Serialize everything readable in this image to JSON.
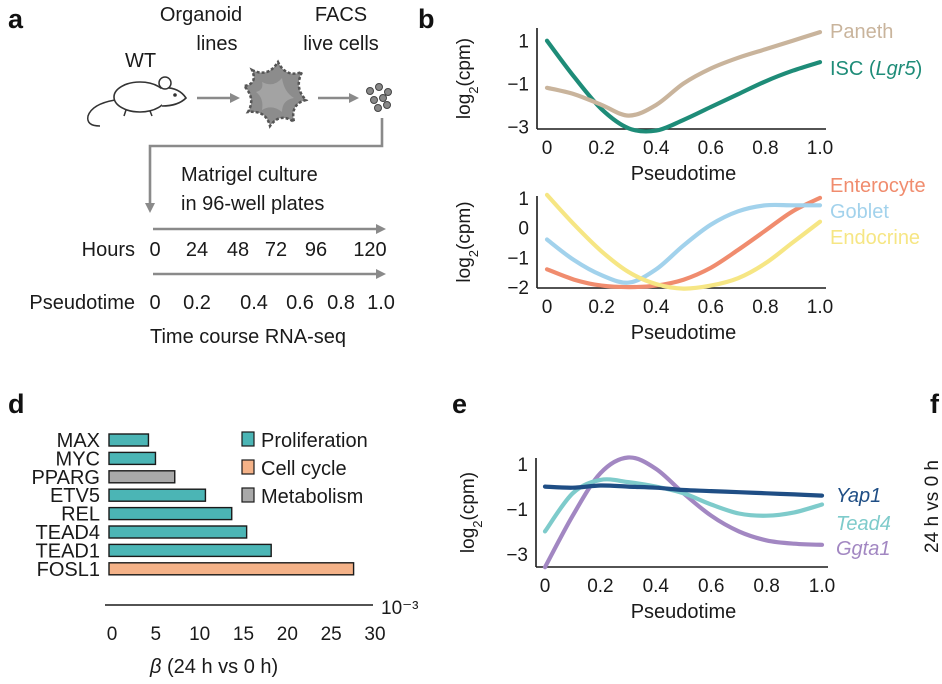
{
  "panels": {
    "a": "a",
    "b": "b",
    "d": "d",
    "e": "e",
    "f": "f"
  },
  "panel_a": {
    "wt_label": "WT",
    "organoid_line1": "Organoid",
    "organoid_line2": "lines",
    "facs_line1": "FACS",
    "facs_line2": "live cells",
    "culture_line1": "Matrigel culture",
    "culture_line2": "in 96-well plates",
    "hours_label": "Hours",
    "hours_ticks": [
      "0",
      "24",
      "48",
      "72",
      "96",
      "120"
    ],
    "pseudotime_label": "Pseudotime",
    "pseudotime_ticks": [
      "0",
      "0.2",
      "0.4",
      "0.6",
      "0.8",
      "1.0"
    ],
    "footer": "Time course RNA-seq",
    "colors": {
      "arrow": "#8a8a8a",
      "organoid": "#8c8c8c"
    },
    "icons": [
      "mouse-icon",
      "organoid-icon",
      "cells-icon"
    ]
  },
  "chart_data": [
    {
      "panel": "b-top",
      "type": "line",
      "xlabel": "Pseudotime",
      "ylabel": "log2(cpm)",
      "xlim": [
        0,
        1
      ],
      "ylim": [
        -3.5,
        1.5
      ],
      "x_ticks": [
        "0",
        "0.2",
        "0.4",
        "0.6",
        "0.8",
        "1.0"
      ],
      "y_ticks": [
        "1",
        "−1",
        "−3"
      ],
      "series": [
        {
          "name": "Paneth",
          "color": "#c9b49c",
          "x": [
            0,
            0.1,
            0.2,
            0.3,
            0.4,
            0.5,
            0.6,
            0.7,
            0.8,
            0.9,
            1.0
          ],
          "y": [
            -1.2,
            -1.5,
            -2.0,
            -2.5,
            -2.0,
            -1.0,
            -0.3,
            0.2,
            0.6,
            1.0,
            1.4
          ]
        },
        {
          "name": "ISC",
          "name_italic_part": "Lgr5",
          "color": "#1e8c78",
          "x": [
            0,
            0.1,
            0.2,
            0.3,
            0.4,
            0.5,
            0.6,
            0.7,
            0.8,
            0.9,
            1.0
          ],
          "y": [
            1.0,
            -0.7,
            -2.2,
            -3.1,
            -3.2,
            -2.7,
            -2.1,
            -1.5,
            -0.9,
            -0.4,
            0.0
          ]
        }
      ]
    },
    {
      "panel": "b-bottom",
      "type": "line",
      "xlabel": "Pseudotime",
      "ylabel": "log2(cpm)",
      "xlim": [
        0,
        1
      ],
      "ylim": [
        -2.3,
        1.3
      ],
      "x_ticks": [
        "0",
        "0.2",
        "0.4",
        "0.6",
        "0.8",
        "1.0"
      ],
      "y_ticks": [
        "1",
        "0",
        "−1",
        "−2"
      ],
      "series": [
        {
          "name": "Enterocyte",
          "color": "#f08c6e",
          "x": [
            0,
            0.1,
            0.2,
            0.3,
            0.4,
            0.5,
            0.6,
            0.7,
            0.8,
            0.9,
            1.0
          ],
          "y": [
            -1.4,
            -1.75,
            -1.95,
            -2.0,
            -1.95,
            -1.75,
            -1.35,
            -0.75,
            -0.1,
            0.55,
            1.0
          ]
        },
        {
          "name": "Goblet",
          "color": "#a2d2ec",
          "x": [
            0,
            0.1,
            0.2,
            0.3,
            0.4,
            0.5,
            0.6,
            0.7,
            0.8,
            0.9,
            1.0
          ],
          "y": [
            -0.4,
            -1.1,
            -1.6,
            -1.85,
            -1.4,
            -0.6,
            0.1,
            0.55,
            0.75,
            0.75,
            0.75
          ]
        },
        {
          "name": "Endocrine",
          "color": "#f6e684",
          "x": [
            0,
            0.1,
            0.2,
            0.3,
            0.4,
            0.5,
            0.6,
            0.7,
            0.8,
            0.9,
            1.0
          ],
          "y": [
            1.1,
            0.1,
            -0.8,
            -1.5,
            -1.9,
            -2.05,
            -1.95,
            -1.7,
            -1.2,
            -0.5,
            0.2
          ]
        }
      ]
    },
    {
      "panel": "d",
      "type": "bar",
      "orientation": "horizontal",
      "xlabel": "β (24 h vs 0 h)",
      "xlabel_beta": "β",
      "xlabel_rest": "(24 h vs 0 h)",
      "scale_note": "10⁻³",
      "xlim": [
        0,
        30
      ],
      "x_ticks": [
        "0",
        "5",
        "10",
        "15",
        "20",
        "25",
        "30"
      ],
      "categories": [
        "MAX",
        "MYC",
        "PPARG",
        "ETV5",
        "REL",
        "TEAD4",
        "TEAD1",
        "FOSL1"
      ],
      "values": [
        4.5,
        5.3,
        7.5,
        11,
        14,
        15.7,
        18.5,
        27.9
      ],
      "groups": [
        "Proliferation",
        "Proliferation",
        "Metabolism",
        "Proliferation",
        "Proliferation",
        "Proliferation",
        "Proliferation",
        "Cell cycle"
      ],
      "legend": [
        {
          "name": "Proliferation",
          "color": "#4bb5b5"
        },
        {
          "name": "Cell cycle",
          "color": "#f4b288"
        },
        {
          "name": "Metabolism",
          "color": "#a9a9a9"
        }
      ]
    },
    {
      "panel": "e",
      "type": "line",
      "xlabel": "Pseudotime",
      "ylabel": "log2(cpm)",
      "xlim": [
        0,
        1
      ],
      "ylim": [
        -3.5,
        1.5
      ],
      "x_ticks": [
        "0",
        "0.2",
        "0.4",
        "0.6",
        "0.8",
        "1.0"
      ],
      "y_ticks": [
        "1",
        "−1",
        "−3"
      ],
      "series": [
        {
          "name": "Yap1",
          "color": "#1f4e85",
          "x": [
            0,
            0.1,
            0.2,
            0.3,
            0.4,
            0.5,
            0.6,
            0.7,
            0.8,
            0.9,
            1.0
          ],
          "y": [
            0.0,
            -0.05,
            0.05,
            0.0,
            -0.05,
            -0.15,
            -0.2,
            -0.25,
            -0.3,
            -0.35,
            -0.4
          ]
        },
        {
          "name": "Tead4",
          "color": "#7ecbcb",
          "x": [
            0,
            0.1,
            0.2,
            0.3,
            0.4,
            0.5,
            0.6,
            0.7,
            0.8,
            0.9,
            1.0
          ],
          "y": [
            -2.0,
            -0.3,
            0.3,
            0.2,
            0.0,
            -0.3,
            -0.8,
            -1.2,
            -1.3,
            -1.15,
            -0.8
          ]
        },
        {
          "name": "Ggta1",
          "color": "#a287c2",
          "x": [
            0,
            0.1,
            0.2,
            0.3,
            0.4,
            0.5,
            0.6,
            0.7,
            0.8,
            0.9,
            1.0
          ],
          "y": [
            -3.6,
            -1.3,
            0.6,
            1.3,
            0.8,
            -0.3,
            -1.3,
            -2.0,
            -2.4,
            -2.55,
            -2.6
          ]
        }
      ]
    },
    {
      "panel": "f",
      "type": "bar",
      "ylabel_partial": "24 h vs 0 h"
    }
  ]
}
